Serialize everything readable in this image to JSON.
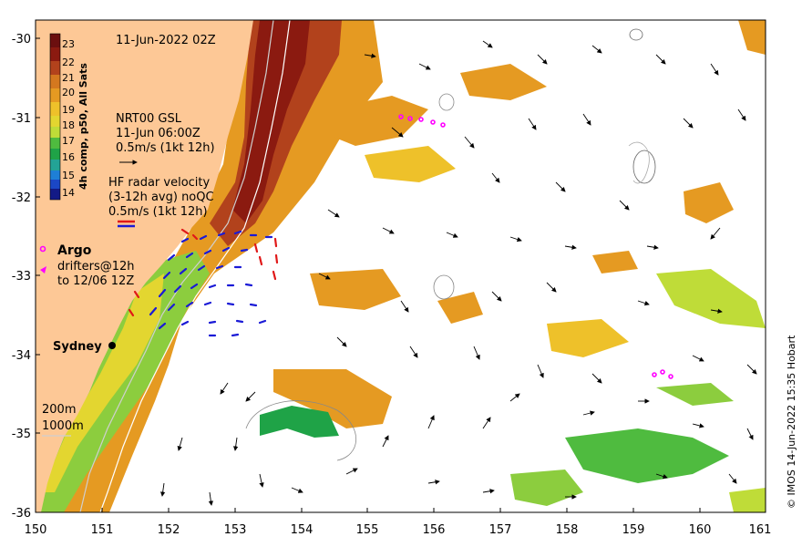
{
  "map": {
    "timestamp": "11-Jun-2022 02Z",
    "x_ticks": [
      "150",
      "151",
      "152",
      "153",
      "154",
      "155",
      "156",
      "157",
      "158",
      "159",
      "160",
      "161"
    ],
    "y_ticks": [
      "-30",
      "-31",
      "-32",
      "-33",
      "-34",
      "-35",
      "-36"
    ],
    "colorbar": {
      "label": "4h comp, p50, All Sats",
      "ticks": [
        "23",
        "22",
        "21",
        "20",
        "19",
        "18",
        "17",
        "16",
        "15",
        "14"
      ],
      "colors": [
        "#6b0f0f",
        "#8b1a10",
        "#b2421c",
        "#d4781f",
        "#e59a22",
        "#eec12a",
        "#e3d630",
        "#bfdc38",
        "#8ccd3e",
        "#4fbb3f",
        "#1fa347",
        "#23a396",
        "#1e7fd6",
        "#1b47c6",
        "#131a86"
      ]
    },
    "gsl_legend": [
      "NRT00 GSL",
      "11-Jun 06:00Z",
      "0.5m/s (1kt 12h)"
    ],
    "hf_legend": [
      "HF radar velocity",
      "(3-12h avg) noQC",
      "0.5m/s (1kt 12h)"
    ],
    "argo_label": "Argo",
    "drifter_legend": [
      "drifters@12h",
      "to 12/06 12Z"
    ],
    "city_label": "Sydney",
    "isobath_labels": [
      "200m",
      "1000m"
    ],
    "credit": "© IMOS 14-Jun-2022 15:35 Hobart",
    "colors": {
      "land": "#fdc896",
      "ocean": "#ffffff",
      "hf_red": "#e01818",
      "hf_blue": "#1a1ad6",
      "argo": "#ff00ff"
    }
  }
}
